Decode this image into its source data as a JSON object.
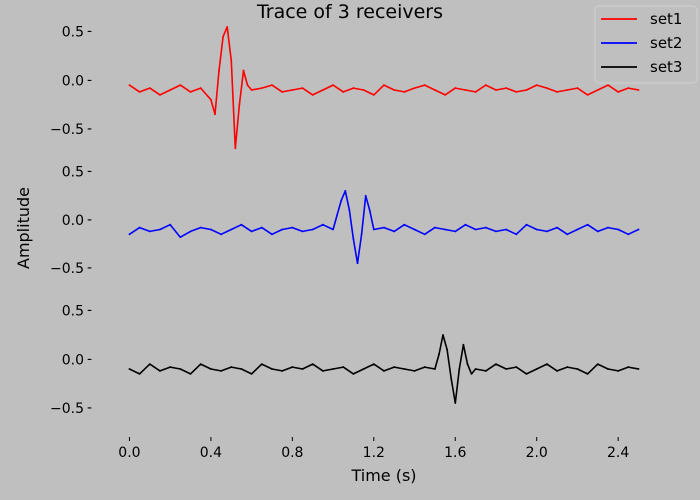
{
  "chart_data": {
    "type": "line",
    "title": "Trace of 3 receivers",
    "xlabel": "Time (s)",
    "ylabel": "Amplitude",
    "xlim": [
      -0.12,
      2.63
    ],
    "x_ticks": [
      "0.0",
      "0.4",
      "0.8",
      "1.2",
      "1.6",
      "2.0",
      "2.4"
    ],
    "x_tick_values": [
      0.0,
      0.4,
      0.8,
      1.2,
      1.6,
      2.0,
      2.4
    ],
    "y_ticks": [
      "0.5",
      "0.0",
      "−0.5"
    ],
    "y_tick_values": [
      0.5,
      0.0,
      -0.5
    ],
    "ylim": [
      -0.8,
      0.6
    ],
    "grid": false,
    "legend_position": "top-right",
    "series": [
      {
        "name": "set1",
        "color": "#ff0000",
        "x": [
          0.0,
          0.05,
          0.1,
          0.15,
          0.2,
          0.25,
          0.3,
          0.35,
          0.4,
          0.42,
          0.44,
          0.46,
          0.48,
          0.5,
          0.52,
          0.54,
          0.56,
          0.58,
          0.6,
          0.65,
          0.7,
          0.75,
          0.8,
          0.85,
          0.9,
          0.95,
          1.0,
          1.05,
          1.1,
          1.15,
          1.2,
          1.25,
          1.3,
          1.35,
          1.4,
          1.45,
          1.5,
          1.55,
          1.6,
          1.65,
          1.7,
          1.75,
          1.8,
          1.85,
          1.9,
          1.95,
          2.0,
          2.05,
          2.1,
          2.15,
          2.2,
          2.25,
          2.3,
          2.35,
          2.4,
          2.45,
          2.5
        ],
        "values": [
          -0.05,
          -0.12,
          -0.08,
          -0.15,
          -0.1,
          -0.05,
          -0.12,
          -0.08,
          -0.2,
          -0.35,
          0.1,
          0.45,
          0.55,
          0.2,
          -0.7,
          -0.25,
          0.1,
          -0.05,
          -0.1,
          -0.08,
          -0.05,
          -0.12,
          -0.1,
          -0.08,
          -0.15,
          -0.1,
          -0.05,
          -0.12,
          -0.08,
          -0.1,
          -0.15,
          -0.05,
          -0.1,
          -0.12,
          -0.08,
          -0.05,
          -0.1,
          -0.15,
          -0.08,
          -0.1,
          -0.12,
          -0.05,
          -0.1,
          -0.08,
          -0.12,
          -0.1,
          -0.05,
          -0.08,
          -0.12,
          -0.1,
          -0.08,
          -0.15,
          -0.1,
          -0.05,
          -0.12,
          -0.08,
          -0.1
        ]
      },
      {
        "name": "set2",
        "color": "#0000ff",
        "x": [
          0.0,
          0.05,
          0.1,
          0.15,
          0.2,
          0.25,
          0.3,
          0.35,
          0.4,
          0.45,
          0.5,
          0.55,
          0.6,
          0.65,
          0.7,
          0.75,
          0.8,
          0.85,
          0.9,
          0.95,
          1.0,
          1.02,
          1.04,
          1.06,
          1.08,
          1.1,
          1.12,
          1.14,
          1.16,
          1.18,
          1.2,
          1.25,
          1.3,
          1.35,
          1.4,
          1.45,
          1.5,
          1.55,
          1.6,
          1.65,
          1.7,
          1.75,
          1.8,
          1.85,
          1.9,
          1.95,
          2.0,
          2.05,
          2.1,
          2.15,
          2.2,
          2.25,
          2.3,
          2.35,
          2.4,
          2.45,
          2.5
        ],
        "values": [
          -0.15,
          -0.08,
          -0.12,
          -0.1,
          -0.05,
          -0.18,
          -0.12,
          -0.08,
          -0.1,
          -0.15,
          -0.1,
          -0.05,
          -0.12,
          -0.08,
          -0.15,
          -0.1,
          -0.08,
          -0.12,
          -0.1,
          -0.05,
          -0.1,
          0.05,
          0.2,
          0.3,
          0.1,
          -0.2,
          -0.45,
          -0.15,
          0.25,
          0.1,
          -0.1,
          -0.08,
          -0.12,
          -0.05,
          -0.1,
          -0.15,
          -0.08,
          -0.1,
          -0.12,
          -0.05,
          -0.1,
          -0.08,
          -0.12,
          -0.1,
          -0.15,
          -0.05,
          -0.1,
          -0.12,
          -0.08,
          -0.15,
          -0.1,
          -0.05,
          -0.12,
          -0.08,
          -0.1,
          -0.15,
          -0.1
        ]
      },
      {
        "name": "set3",
        "color": "#000000",
        "x": [
          0.0,
          0.05,
          0.1,
          0.15,
          0.2,
          0.25,
          0.3,
          0.35,
          0.4,
          0.45,
          0.5,
          0.55,
          0.6,
          0.65,
          0.7,
          0.75,
          0.8,
          0.85,
          0.9,
          0.95,
          1.0,
          1.05,
          1.1,
          1.15,
          1.2,
          1.25,
          1.3,
          1.35,
          1.4,
          1.45,
          1.5,
          1.52,
          1.54,
          1.56,
          1.58,
          1.6,
          1.62,
          1.64,
          1.66,
          1.68,
          1.7,
          1.75,
          1.8,
          1.85,
          1.9,
          1.95,
          2.0,
          2.05,
          2.1,
          2.15,
          2.2,
          2.25,
          2.3,
          2.35,
          2.4,
          2.45,
          2.5
        ],
        "values": [
          -0.1,
          -0.15,
          -0.05,
          -0.12,
          -0.08,
          -0.1,
          -0.15,
          -0.05,
          -0.1,
          -0.12,
          -0.08,
          -0.1,
          -0.15,
          -0.05,
          -0.1,
          -0.12,
          -0.08,
          -0.1,
          -0.05,
          -0.12,
          -0.1,
          -0.08,
          -0.15,
          -0.1,
          -0.05,
          -0.12,
          -0.08,
          -0.1,
          -0.12,
          -0.08,
          -0.1,
          0.05,
          0.25,
          0.1,
          -0.2,
          -0.45,
          -0.1,
          0.15,
          -0.05,
          -0.15,
          -0.1,
          -0.12,
          -0.05,
          -0.1,
          -0.08,
          -0.15,
          -0.1,
          -0.05,
          -0.12,
          -0.08,
          -0.1,
          -0.15,
          -0.05,
          -0.1,
          -0.12,
          -0.08,
          -0.1
        ]
      }
    ]
  }
}
